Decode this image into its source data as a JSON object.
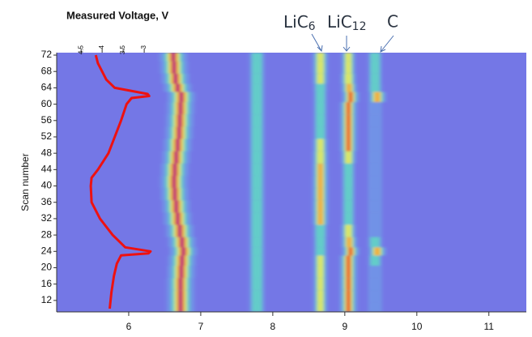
{
  "chart_data": {
    "type": "heatmap",
    "title": "Measured  Voltage, V",
    "y_label": "Scan number",
    "xlim": [
      5.0,
      11.52
    ],
    "xticks": [
      6,
      7,
      8,
      9,
      10,
      11
    ],
    "ylim": [
      9.2,
      72.6
    ],
    "yticks": [
      12,
      16,
      20,
      24,
      28,
      32,
      36,
      40,
      44,
      48,
      52,
      56,
      60,
      64,
      68,
      72
    ],
    "x2lim": [
      5.08,
      -6.08
    ],
    "x2ticks": [
      4.5,
      4,
      3.5,
      3
    ],
    "annotations": [
      {
        "text": "LiC",
        "sub": "6"
      },
      {
        "text": "LiC",
        "sub": "12"
      },
      {
        "text": "C"
      }
    ],
    "scans": [
      10,
      13,
      16,
      19,
      22,
      24,
      26,
      29,
      32,
      35,
      38,
      41,
      44,
      47,
      50,
      53,
      56,
      59,
      62,
      64,
      66,
      69,
      72
    ],
    "peaks": [
      {
        "width": 0.13,
        "positions": [
          6.72,
          6.72,
          6.72,
          6.73,
          6.74,
          6.76,
          6.74,
          6.71,
          6.68,
          6.66,
          6.64,
          6.63,
          6.64,
          6.66,
          6.68,
          6.7,
          6.71,
          6.72,
          6.73,
          6.68,
          6.65,
          6.63,
          6.62
        ],
        "intensities": [
          1,
          1,
          1,
          1,
          1,
          1,
          1,
          1,
          1,
          1,
          1,
          1,
          1,
          1,
          1,
          1,
          1,
          1,
          1,
          1,
          1,
          1,
          1
        ]
      },
      {
        "width": 0.1,
        "positions": [
          7.78,
          7.78,
          7.78,
          7.78,
          7.78,
          7.78,
          7.78,
          7.78,
          7.78,
          7.78,
          7.78,
          7.78,
          7.78,
          7.78,
          7.78,
          7.78,
          7.78,
          7.78,
          7.78,
          7.78,
          7.78,
          7.78,
          7.78
        ],
        "intensities": [
          0.3,
          0.3,
          0.3,
          0.3,
          0.3,
          0.3,
          0.3,
          0.3,
          0.3,
          0.3,
          0.3,
          0.3,
          0.3,
          0.3,
          0.3,
          0.3,
          0.3,
          0.3,
          0.3,
          0.3,
          0.3,
          0.3,
          0.3
        ]
      },
      {
        "width": 0.09,
        "positions": [
          8.66,
          8.66,
          8.66,
          8.66,
          8.66,
          8.66,
          8.66,
          8.66,
          8.66,
          8.66,
          8.66,
          8.66,
          8.66,
          8.66,
          8.66,
          8.66,
          8.66,
          8.66,
          8.66,
          8.66,
          8.66,
          8.66,
          8.66
        ],
        "intensities": [
          0.35,
          0.35,
          0.35,
          0.35,
          0.35,
          0.25,
          0.25,
          0.3,
          0.6,
          0.62,
          0.62,
          0.62,
          0.6,
          0.55,
          0.45,
          0.25,
          0.25,
          0.25,
          0.25,
          0.3,
          0.5,
          0.55,
          0.55
        ]
      },
      {
        "width": 0.09,
        "positions": [
          9.05,
          9.05,
          9.05,
          9.05,
          9.05,
          9.08,
          9.06,
          9.05,
          9.05,
          9.05,
          9.05,
          9.05,
          9.05,
          9.05,
          9.05,
          9.05,
          9.05,
          9.05,
          9.08,
          9.06,
          9.05,
          9.05,
          9.05
        ],
        "intensities": [
          0.85,
          0.85,
          0.85,
          0.85,
          0.85,
          0.8,
          0.6,
          0.45,
          0.2,
          0.2,
          0.2,
          0.2,
          0.2,
          0.5,
          0.8,
          0.8,
          0.8,
          0.8,
          0.8,
          0.6,
          0.55,
          0.35,
          0.35
        ]
      },
      {
        "width": 0.1,
        "positions": [
          9.42,
          9.42,
          9.42,
          9.42,
          9.42,
          9.45,
          9.42,
          9.42,
          9.42,
          9.42,
          9.42,
          9.42,
          9.42,
          9.42,
          9.42,
          9.42,
          9.42,
          9.42,
          9.45,
          9.42,
          9.42,
          9.42,
          9.42
        ],
        "intensities": [
          0.12,
          0.12,
          0.12,
          0.12,
          0.15,
          0.6,
          0.2,
          0.12,
          0.12,
          0.12,
          0.12,
          0.12,
          0.12,
          0.12,
          0.12,
          0.12,
          0.12,
          0.12,
          0.6,
          0.2,
          0.15,
          0.15,
          0.15
        ]
      }
    ],
    "voltage": {
      "color": "#ee1111",
      "scans": [
        10,
        14,
        18,
        21,
        23,
        23.5,
        24,
        25,
        28,
        32,
        36,
        40,
        42,
        44,
        48,
        52,
        56,
        60,
        61.5,
        62,
        62.5,
        64,
        66,
        68,
        70,
        72
      ],
      "values": [
        3.82,
        3.78,
        3.72,
        3.65,
        3.55,
        2.9,
        2.85,
        3.45,
        3.75,
        4.05,
        4.25,
        4.27,
        4.25,
        4.1,
        3.85,
        3.7,
        3.55,
        3.42,
        3.3,
        2.88,
        2.92,
        3.7,
        3.9,
        4.0,
        4.1,
        4.15
      ]
    }
  }
}
